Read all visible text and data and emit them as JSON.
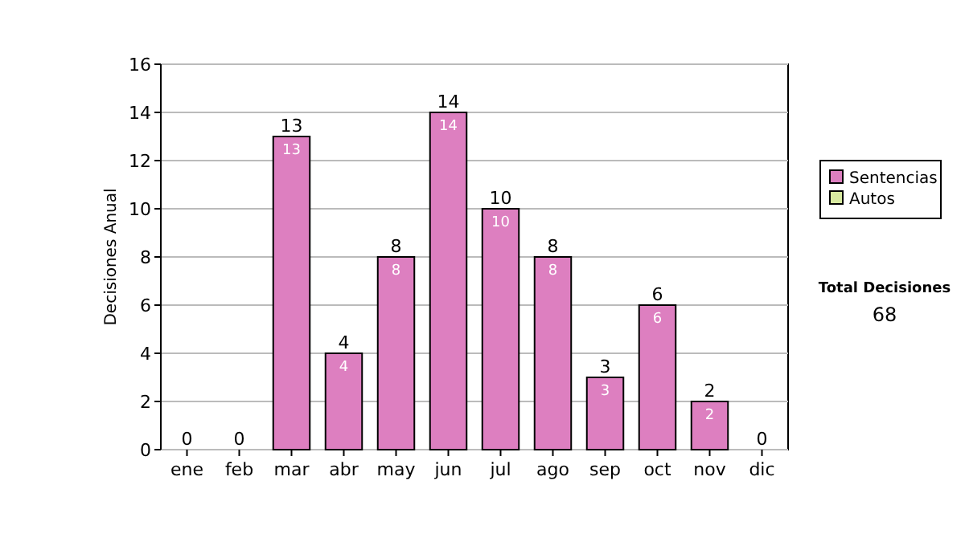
{
  "chart_data": {
    "type": "bar",
    "stacked": true,
    "ylabel": "Decisiones Anual",
    "categories": [
      "ene",
      "feb",
      "mar",
      "abr",
      "may",
      "jun",
      "jul",
      "ago",
      "sep",
      "oct",
      "nov",
      "dic"
    ],
    "series": [
      {
        "name": "Sentencias",
        "color": "#dd7fc0",
        "values": [
          0,
          0,
          13,
          4,
          8,
          14,
          10,
          8,
          3,
          6,
          2,
          0
        ],
        "value_labels": [
          null,
          null,
          "13",
          "4",
          "8",
          "14",
          "10",
          "8",
          "3",
          "6",
          "2",
          null
        ]
      },
      {
        "name": "Autos",
        "color": "#d8eaa0",
        "values": [
          0,
          0,
          0,
          0,
          0,
          0,
          0,
          0,
          0,
          0,
          0,
          0
        ]
      }
    ],
    "totals": [
      "0",
      "0",
      "13",
      "4",
      "8",
      "14",
      "10",
      "8",
      "3",
      "6",
      "2",
      "0"
    ],
    "ylim": [
      0,
      16
    ],
    "yticks": [
      0,
      2,
      4,
      6,
      8,
      10,
      12,
      14,
      16
    ],
    "grid": "y",
    "legend": "right",
    "annotations": [
      "Total Decisiones",
      "68"
    ]
  }
}
